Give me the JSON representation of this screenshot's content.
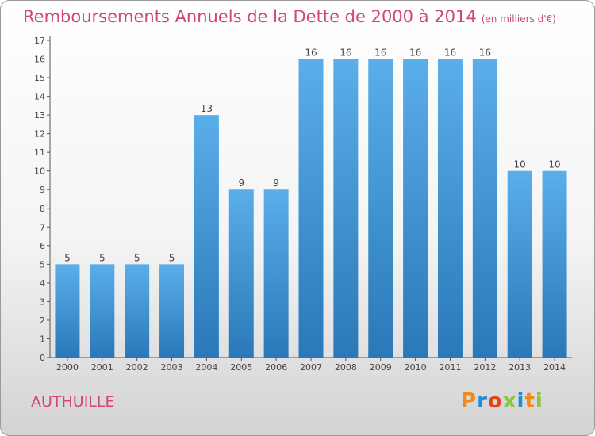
{
  "title": "Remboursements Annuels de la Dette de 2000 à 2014",
  "unit_note": "(en milliers d'€)",
  "commune": "AUTHUILLE",
  "logo_text": "Proxiti",
  "colors": {
    "title": "#d0457a",
    "bar_top": "#5aaeea",
    "bar_bottom": "#2a78b8",
    "axis": "#555555"
  },
  "chart_data": {
    "type": "bar",
    "categories": [
      "2000",
      "2001",
      "2002",
      "2003",
      "2004",
      "2005",
      "2006",
      "2007",
      "2008",
      "2009",
      "2010",
      "2011",
      "2012",
      "2013",
      "2014"
    ],
    "values": [
      5,
      5,
      5,
      5,
      13,
      9,
      9,
      16,
      16,
      16,
      16,
      16,
      16,
      10,
      10
    ],
    "ylim": [
      0,
      17
    ],
    "yticks": [
      0,
      1,
      2,
      3,
      4,
      5,
      6,
      7,
      8,
      9,
      10,
      11,
      12,
      13,
      14,
      15,
      16,
      17
    ],
    "grid": false,
    "data_labels": true
  }
}
